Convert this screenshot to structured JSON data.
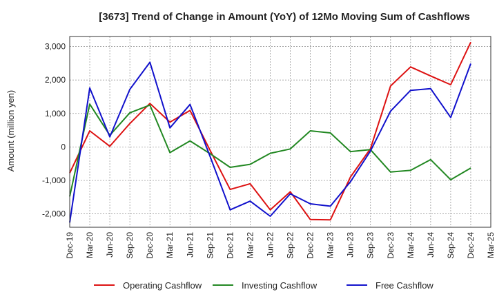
{
  "chart_data": {
    "type": "line",
    "title": "[3673]  Trend of Change in Amount (YoY) of 12Mo Moving Sum of Cashflows",
    "xlabel": "",
    "ylabel": "Amount (million yen)",
    "ylim": [
      -2400,
      3300
    ],
    "yticks": [
      -2000,
      -1000,
      0,
      1000,
      2000,
      3000
    ],
    "ytick_labels": [
      "-2,000",
      "-1,000",
      "0",
      "1,000",
      "2,000",
      "3,000"
    ],
    "categories": [
      "Dec-19",
      "Mar-20",
      "Jun-20",
      "Sep-20",
      "Dec-20",
      "Mar-21",
      "Jun-21",
      "Sep-21",
      "Dec-21",
      "Mar-22",
      "Jun-22",
      "Sep-22",
      "Dec-22",
      "Mar-23",
      "Jun-23",
      "Sep-23",
      "Dec-23",
      "Mar-24",
      "Jun-24",
      "Sep-24",
      "Dec-24",
      "Mar-25"
    ],
    "grid": true,
    "legend_position": "bottom",
    "series": [
      {
        "name": "Operating Cashflow",
        "color": "#dd1111",
        "values": [
          -780,
          480,
          20,
          700,
          1300,
          740,
          1090,
          -100,
          -1270,
          -1100,
          -1880,
          -1340,
          -2170,
          -2180,
          -900,
          -50,
          1820,
          2390,
          2120,
          1860,
          3130,
          null
        ]
      },
      {
        "name": "Investing Cashflow",
        "color": "#228822",
        "values": [
          -1480,
          1280,
          350,
          1020,
          1250,
          -170,
          180,
          -200,
          -610,
          -520,
          -190,
          -60,
          480,
          420,
          -140,
          -80,
          -750,
          -700,
          -380,
          -980,
          -630,
          null
        ]
      },
      {
        "name": "Free Cashflow",
        "color": "#1111cc",
        "values": [
          -2260,
          1760,
          300,
          1720,
          2530,
          570,
          1270,
          -280,
          -1880,
          -1620,
          -2070,
          -1400,
          -1700,
          -1770,
          -1040,
          -120,
          1070,
          1690,
          1740,
          880,
          2490,
          null
        ]
      }
    ]
  }
}
